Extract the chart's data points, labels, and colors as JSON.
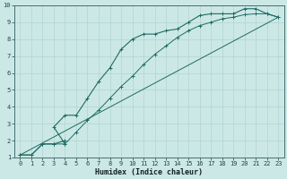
{
  "xlabel": "Humidex (Indice chaleur)",
  "xlim": [
    -0.5,
    23.5
  ],
  "ylim": [
    1,
    10
  ],
  "xticks": [
    0,
    1,
    2,
    3,
    4,
    5,
    6,
    7,
    8,
    9,
    10,
    11,
    12,
    13,
    14,
    15,
    16,
    17,
    18,
    19,
    20,
    21,
    22,
    23
  ],
  "yticks": [
    1,
    2,
    3,
    4,
    5,
    6,
    7,
    8,
    9,
    10
  ],
  "bg_color": "#cce8e6",
  "line_color": "#1e6b64",
  "grid_color": "#b0d4d0",
  "line1_x": [
    0,
    1,
    2,
    3,
    4,
    4,
    3,
    4,
    5,
    6,
    7,
    8,
    9,
    10,
    11,
    12,
    13,
    14,
    15,
    16,
    17,
    18,
    19,
    20,
    21,
    22,
    23
  ],
  "line1_y": [
    1.15,
    1.15,
    1.8,
    1.8,
    2.0,
    1.8,
    2.8,
    3.5,
    3.5,
    4.5,
    5.5,
    6.3,
    7.4,
    8.0,
    8.3,
    8.3,
    8.5,
    8.6,
    9.0,
    9.4,
    9.5,
    9.5,
    9.5,
    9.8,
    9.8,
    9.5,
    9.3
  ],
  "line2_x": [
    0,
    23
  ],
  "line2_y": [
    1.15,
    9.3
  ],
  "line3_x": [
    0,
    1,
    2,
    3,
    4,
    5,
    6,
    7,
    8,
    9,
    10,
    11,
    12,
    13,
    14,
    15,
    16,
    17,
    18,
    19,
    20,
    21,
    22,
    23
  ],
  "line3_y": [
    1.15,
    1.15,
    1.8,
    1.8,
    1.8,
    2.5,
    3.2,
    3.8,
    4.5,
    5.2,
    5.8,
    6.5,
    7.1,
    7.6,
    8.1,
    8.5,
    8.8,
    9.0,
    9.2,
    9.3,
    9.45,
    9.5,
    9.5,
    9.3
  ],
  "tick_fontsize": 5.0,
  "xlabel_fontsize": 6.0,
  "lw1": 0.8,
  "lw2": 0.7,
  "lw3": 0.7,
  "marker_size": 3.0,
  "marker_lw": 0.7
}
